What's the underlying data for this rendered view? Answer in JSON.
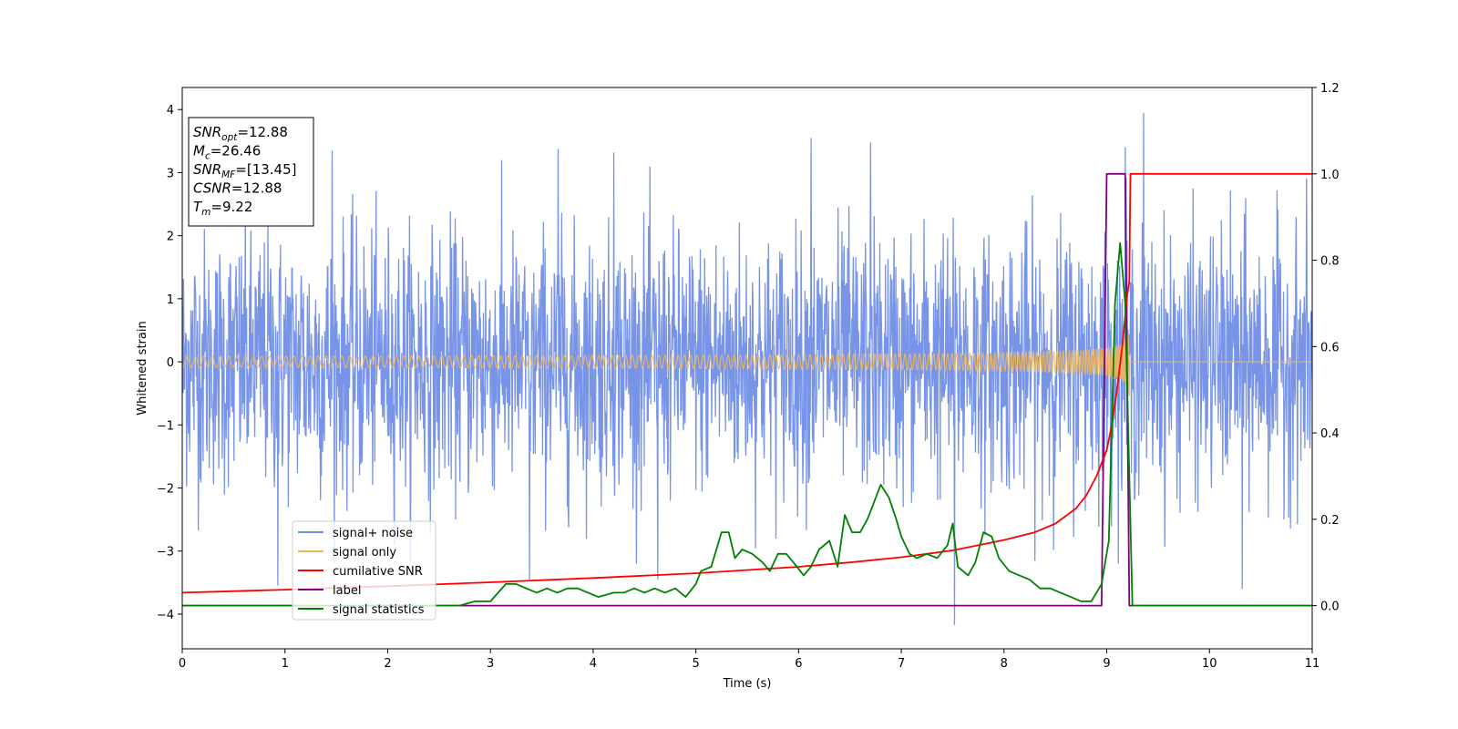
{
  "chart_data": {
    "type": "line",
    "xlabel": "Time (s)",
    "ylabel": "Whitened strain",
    "xlim": [
      0,
      11
    ],
    "ylim": [
      -4.55,
      4.35
    ],
    "y2lim": [
      -0.1,
      1.2
    ],
    "xticks": [
      0,
      1,
      2,
      3,
      4,
      5,
      6,
      7,
      8,
      9,
      10,
      11
    ],
    "yticks": [
      -4,
      -3,
      -2,
      -1,
      0,
      1,
      2,
      3,
      4
    ],
    "y2ticks": [
      "0.0",
      "0.2",
      "0.4",
      "0.6",
      "0.8",
      "1.0",
      "1.2"
    ],
    "grid": false,
    "legend_position": "lower-left",
    "textbox": {
      "lines": [
        {
          "main": "SNR",
          "sub": "opt",
          "rest": "=12.88"
        },
        {
          "main": "M",
          "sub": "c",
          "rest": "=26.46"
        },
        {
          "main": "SNR",
          "sub": "MF",
          "rest": "=[13.45]"
        },
        {
          "main": "CSNR",
          "sub": "",
          "rest": "=12.88"
        },
        {
          "main": "T",
          "sub": "m",
          "rest": "=9.22"
        }
      ]
    },
    "series": [
      {
        "name": "signal+ noise",
        "axis": "left",
        "color": "#6b8be6",
        "description": "Gaussian noise with amplitude roughly ±2.5 (peaks to about ±3.5), max 3.95 near t=9.36, min -4.17 near t=7.52",
        "noise_std": 1.0,
        "peaks": [
          [
            1.46,
            3.35
          ],
          [
            3.66,
            3.38
          ],
          [
            4.2,
            3.32
          ],
          [
            6.12,
            3.55
          ],
          [
            6.7,
            3.48
          ],
          [
            9.18,
            3.4
          ],
          [
            9.36,
            3.95
          ],
          [
            0.93,
            -3.55
          ],
          [
            3.38,
            -3.45
          ],
          [
            4.63,
            -3.45
          ],
          [
            7.52,
            -4.17
          ],
          [
            10.32,
            -3.6
          ]
        ]
      },
      {
        "name": "signal only",
        "axis": "left",
        "color": "#f5b755",
        "description": "chirp with frequency and amplitude increasing until merger at t=9.22, then zero",
        "merger_time": 9.22,
        "peak_amplitude": 1.1
      },
      {
        "name": "cumilative SNR",
        "axis": "right",
        "color": "#ff0000",
        "x": [
          0,
          1,
          2,
          3,
          4,
          5,
          6,
          6.5,
          7,
          7.5,
          8,
          8.3,
          8.5,
          8.7,
          8.8,
          8.9,
          9.0,
          9.05,
          9.1,
          9.15,
          9.2,
          9.22,
          9.23,
          11
        ],
        "y": [
          0.03,
          0.037,
          0.045,
          0.054,
          0.064,
          0.075,
          0.09,
          0.1,
          0.112,
          0.128,
          0.152,
          0.17,
          0.19,
          0.225,
          0.255,
          0.3,
          0.36,
          0.42,
          0.5,
          0.6,
          0.72,
          0.75,
          1.0,
          1.0
        ]
      },
      {
        "name": "label",
        "axis": "right",
        "color": "#800080",
        "x": [
          0,
          8.95,
          9.0,
          9.18,
          9.22,
          11
        ],
        "y": [
          0.0,
          0.0,
          1.0,
          1.0,
          0.0,
          0.0
        ]
      },
      {
        "name": "signal statistics",
        "axis": "right",
        "color": "#008000",
        "x": [
          0,
          2.7,
          2.85,
          3.0,
          3.15,
          3.25,
          3.35,
          3.45,
          3.55,
          3.65,
          3.75,
          3.85,
          3.95,
          4.05,
          4.2,
          4.3,
          4.4,
          4.5,
          4.6,
          4.7,
          4.8,
          4.9,
          5.0,
          5.05,
          5.15,
          5.25,
          5.32,
          5.38,
          5.45,
          5.55,
          5.65,
          5.72,
          5.8,
          5.88,
          5.95,
          6.05,
          6.12,
          6.2,
          6.3,
          6.38,
          6.45,
          6.52,
          6.6,
          6.67,
          6.72,
          6.8,
          6.88,
          6.95,
          7.0,
          7.08,
          7.15,
          7.25,
          7.35,
          7.45,
          7.5,
          7.55,
          7.65,
          7.72,
          7.8,
          7.88,
          7.95,
          8.05,
          8.15,
          8.25,
          8.35,
          8.45,
          8.55,
          8.65,
          8.75,
          8.85,
          8.95,
          9.02,
          9.08,
          9.13,
          9.18,
          9.22,
          9.25,
          11
        ],
        "y": [
          0.0,
          0.0,
          0.01,
          0.01,
          0.05,
          0.05,
          0.04,
          0.03,
          0.04,
          0.03,
          0.04,
          0.04,
          0.03,
          0.02,
          0.03,
          0.03,
          0.04,
          0.03,
          0.04,
          0.03,
          0.04,
          0.02,
          0.05,
          0.08,
          0.09,
          0.17,
          0.17,
          0.11,
          0.13,
          0.12,
          0.1,
          0.08,
          0.12,
          0.12,
          0.1,
          0.07,
          0.09,
          0.13,
          0.15,
          0.09,
          0.21,
          0.17,
          0.17,
          0.2,
          0.23,
          0.28,
          0.25,
          0.2,
          0.16,
          0.12,
          0.11,
          0.12,
          0.11,
          0.14,
          0.19,
          0.09,
          0.07,
          0.1,
          0.17,
          0.16,
          0.11,
          0.08,
          0.07,
          0.06,
          0.04,
          0.04,
          0.03,
          0.02,
          0.01,
          0.01,
          0.05,
          0.15,
          0.7,
          0.84,
          0.7,
          0.3,
          0.0,
          0.0
        ]
      }
    ]
  }
}
